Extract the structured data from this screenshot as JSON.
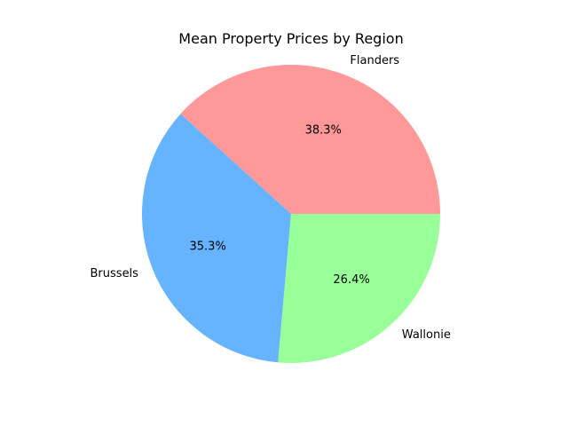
{
  "chart_data": {
    "type": "pie",
    "title": "Mean Property Prices by Region",
    "slices": [
      {
        "label": "Flanders",
        "percent": 38.3,
        "percent_label": "38.3%",
        "color": "#ff9999"
      },
      {
        "label": "Brussels",
        "percent": 35.3,
        "percent_label": "35.3%",
        "color": "#66b3ff"
      },
      {
        "label": "Wallonie",
        "percent": 26.4,
        "percent_label": "26.4%",
        "color": "#99ff99"
      }
    ],
    "start_angle_deg": 0,
    "direction": "counterclockwise",
    "legend": "none"
  }
}
